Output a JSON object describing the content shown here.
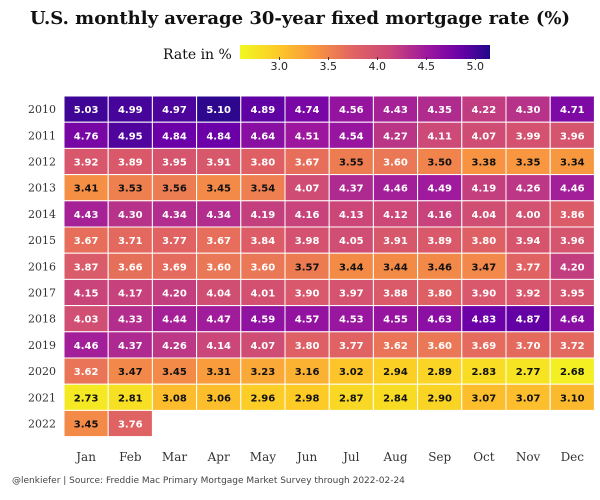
{
  "chart_data": {
    "type": "heatmap",
    "title": "U.S. monthly average 30-year fixed mortgage rate (%)",
    "legend": {
      "label": "Rate in %",
      "ticks": [
        "3.0",
        "3.5",
        "4.0",
        "4.5",
        "5.0"
      ],
      "tick_values": [
        3.0,
        3.5,
        4.0,
        4.5,
        5.0
      ],
      "range": [
        2.6,
        5.15
      ]
    },
    "months": [
      "Jan",
      "Feb",
      "Mar",
      "Apr",
      "May",
      "Jun",
      "Jul",
      "Aug",
      "Sep",
      "Oct",
      "Nov",
      "Dec"
    ],
    "years": [
      "2010",
      "2011",
      "2012",
      "2013",
      "2014",
      "2015",
      "2016",
      "2017",
      "2018",
      "2019",
      "2020",
      "2021",
      "2022"
    ],
    "values": [
      [
        5.03,
        4.99,
        4.97,
        5.1,
        4.89,
        4.74,
        4.56,
        4.43,
        4.35,
        4.22,
        4.3,
        4.71
      ],
      [
        4.76,
        4.95,
        4.84,
        4.84,
        4.64,
        4.51,
        4.54,
        4.27,
        4.11,
        4.07,
        3.99,
        3.96
      ],
      [
        3.92,
        3.89,
        3.95,
        3.91,
        3.8,
        3.67,
        3.55,
        3.6,
        3.5,
        3.38,
        3.35,
        3.34
      ],
      [
        3.41,
        3.53,
        3.56,
        3.45,
        3.54,
        4.07,
        4.37,
        4.46,
        4.49,
        4.19,
        4.26,
        4.46
      ],
      [
        4.43,
        4.3,
        4.34,
        4.34,
        4.19,
        4.16,
        4.13,
        4.12,
        4.16,
        4.04,
        4.0,
        3.86
      ],
      [
        3.67,
        3.71,
        3.77,
        3.67,
        3.84,
        3.98,
        4.05,
        3.91,
        3.89,
        3.8,
        3.94,
        3.96
      ],
      [
        3.87,
        3.66,
        3.69,
        3.6,
        3.6,
        3.57,
        3.44,
        3.44,
        3.46,
        3.47,
        3.77,
        4.2
      ],
      [
        4.15,
        4.17,
        4.2,
        4.04,
        4.01,
        3.9,
        3.97,
        3.88,
        3.8,
        3.9,
        3.92,
        3.95
      ],
      [
        4.03,
        4.33,
        4.44,
        4.47,
        4.59,
        4.57,
        4.53,
        4.55,
        4.63,
        4.83,
        4.87,
        4.64
      ],
      [
        4.46,
        4.37,
        4.26,
        4.14,
        4.07,
        3.8,
        3.77,
        3.62,
        3.6,
        3.69,
        3.7,
        3.72
      ],
      [
        3.62,
        3.47,
        3.45,
        3.31,
        3.23,
        3.16,
        3.02,
        2.94,
        2.89,
        2.83,
        2.77,
        2.68
      ],
      [
        2.73,
        2.81,
        3.08,
        3.06,
        2.96,
        2.98,
        2.87,
        2.84,
        2.9,
        3.07,
        3.07,
        3.1
      ],
      [
        3.45,
        3.76,
        null,
        null,
        null,
        null,
        null,
        null,
        null,
        null,
        null,
        null
      ]
    ],
    "colormap": "plasma (reversed)",
    "grid": false
  },
  "caption": "@lenkiefer | Source: Freddie Mac Primary Mortgage Market Survey through 2022-02-24"
}
